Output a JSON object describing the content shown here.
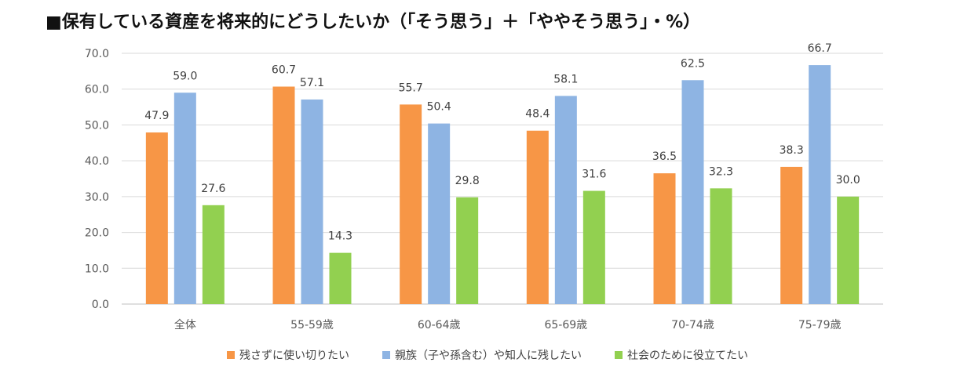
{
  "chart_data": {
    "type": "bar",
    "title": "■保有している資産を将来的にどうしたいか（「そう思う」＋「ややそう思う」・%）",
    "categories": [
      "全体",
      "55-59歳",
      "60-64歳",
      "65-69歳",
      "70-74歳",
      "75-79歳"
    ],
    "series": [
      {
        "name": "残さずに使い切りたい",
        "color": "#F79646",
        "values": [
          47.9,
          60.7,
          55.7,
          48.4,
          36.5,
          38.3
        ]
      },
      {
        "name": "親族（子や孫含む）や知人に残したい",
        "color": "#8EB4E3",
        "values": [
          59.0,
          57.1,
          50.4,
          58.1,
          62.5,
          66.7
        ]
      },
      {
        "name": "社会のために役立てたい",
        "color": "#92D050",
        "values": [
          27.6,
          14.3,
          29.8,
          31.6,
          32.3,
          30.0
        ]
      }
    ],
    "ylim": [
      0,
      70
    ],
    "yticks": [
      "0.0",
      "10.0",
      "20.0",
      "30.0",
      "40.0",
      "50.0",
      "60.0",
      "70.0"
    ],
    "grid": true,
    "legend_position": "bottom"
  }
}
